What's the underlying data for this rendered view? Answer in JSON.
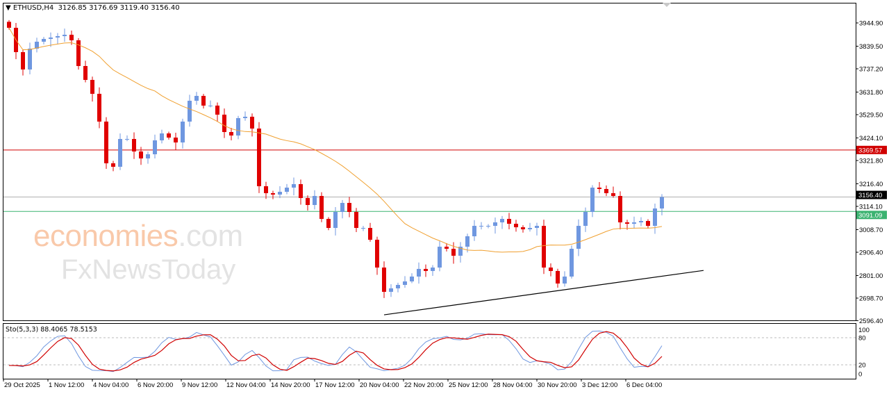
{
  "header": {
    "symbol": "ETHUSD,H4",
    "ohlc": "3126.85 3176.69 3119.40 3156.40"
  },
  "watermark": {
    "brand1": "economies",
    "brand1_suffix": ".com",
    "brand2": "FxNewsToday"
  },
  "colors": {
    "bull": "#6f97e0",
    "bear": "#e00000",
    "ma": "#f0a030",
    "resistance": "#d00000",
    "support": "#3cb371",
    "current": "#b0b0b0",
    "sto_main": "#6f97e0",
    "sto_signal": "#d00000"
  },
  "chart_data": {
    "type": "candlestick",
    "timeframe": "H4",
    "ylim": [
      2596.4,
      3990
    ],
    "y_ticks": [
      "3944.90",
      "3839.50",
      "3737.20",
      "3631.80",
      "3529.50",
      "3424.10",
      "3321.80",
      "3216.40",
      "3114.10",
      "3008.70",
      "2906.40",
      "2801.00",
      "2698.70",
      "2596.40"
    ],
    "x_ticks": [
      "29 Oct 2025",
      "1 Nov 12:00",
      "4 Nov 04:00",
      "6 Nov 20:00",
      "9 Nov 12:00",
      "12 Nov 04:00",
      "14 Nov 20:00",
      "17 Nov 12:00",
      "20 Nov 04:00",
      "22 Nov 20:00",
      "25 Nov 12:00",
      "28 Nov 04:00",
      "30 Nov 20:00",
      "3 Dec 12:00",
      "6 Dec 04:00"
    ],
    "closes": [
      3922.9,
      3812.7,
      3734.1,
      3828.5,
      3859.9,
      3872.5,
      3878.8,
      3885.1,
      3891.4,
      3866.2,
      3749.8,
      3686.9,
      3623.9,
      3498.1,
      3309.2,
      3293.5,
      3419.4,
      3419.4,
      3362.7,
      3331.2,
      3350.1,
      3413.1,
      3444.5,
      3425.7,
      3403.6,
      3498.1,
      3592.5,
      3614.5,
      3570.5,
      3570.5,
      3529.5,
      3450.8,
      3435.1,
      3513.8,
      3520.1,
      3466.6,
      3205.4,
      3173.9,
      3167.6,
      3180.2,
      3199.1,
      3214.8,
      3151.9,
      3120.4,
      3161.3,
      3057.4,
      3016.5,
      3088.9,
      3129.8,
      3088.9,
      3016.5,
      3016.5,
      2963.0,
      2837.1,
      2727.1,
      2742.8,
      2758.5,
      2774.3,
      2796.3,
      2830.9,
      2821.5,
      2837.1,
      2931.5,
      2922.1,
      2890.6,
      2931.5,
      2978.7,
      3025.9,
      3025.9,
      3025.9,
      3041.7,
      3057.4,
      3035.4,
      3019.6,
      3010.2,
      3016.5,
      3025.9,
      2837.1,
      2821.5,
      2764.8,
      2796.3,
      2922.1,
      3025.9,
      3088.9,
      3199.1,
      3192.8,
      3173.9,
      3161.3,
      3041.7,
      3035.4,
      3041.7,
      3048.0,
      3025.9,
      3104.6,
      3156.4
    ],
    "levels": [
      {
        "price": 3369.57,
        "label": "3369.57",
        "kind": "resistance"
      },
      {
        "price": 3156.4,
        "label": "3156.40",
        "kind": "current"
      },
      {
        "price": 3091.09,
        "label": "3091.09",
        "kind": "support"
      }
    ],
    "trendline": {
      "from": {
        "bar": 54,
        "price": 2623
      },
      "to": {
        "bar": 100,
        "price": 2824
      }
    },
    "indicator": {
      "name": "Sto(5,3,3)",
      "main": "88.4065",
      "signal": "78.5153",
      "ylim": [
        0,
        100
      ],
      "y_ticks": [
        "100",
        "80",
        "20",
        "0"
      ],
      "levels": [
        80,
        20
      ]
    }
  }
}
